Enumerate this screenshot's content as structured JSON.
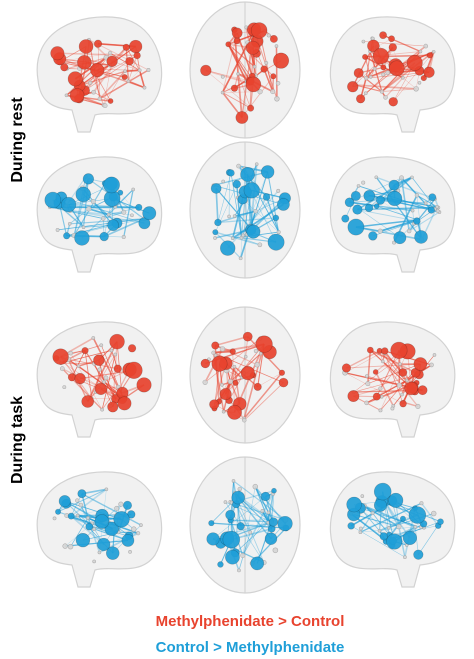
{
  "row_labels": [
    "During rest",
    "During task"
  ],
  "legend": {
    "items": [
      {
        "text": "Methylphenidate > Control",
        "color": "#e8432e"
      },
      {
        "text": "Control > Methylphenidate",
        "color": "#1f9fd8"
      }
    ]
  }
}
